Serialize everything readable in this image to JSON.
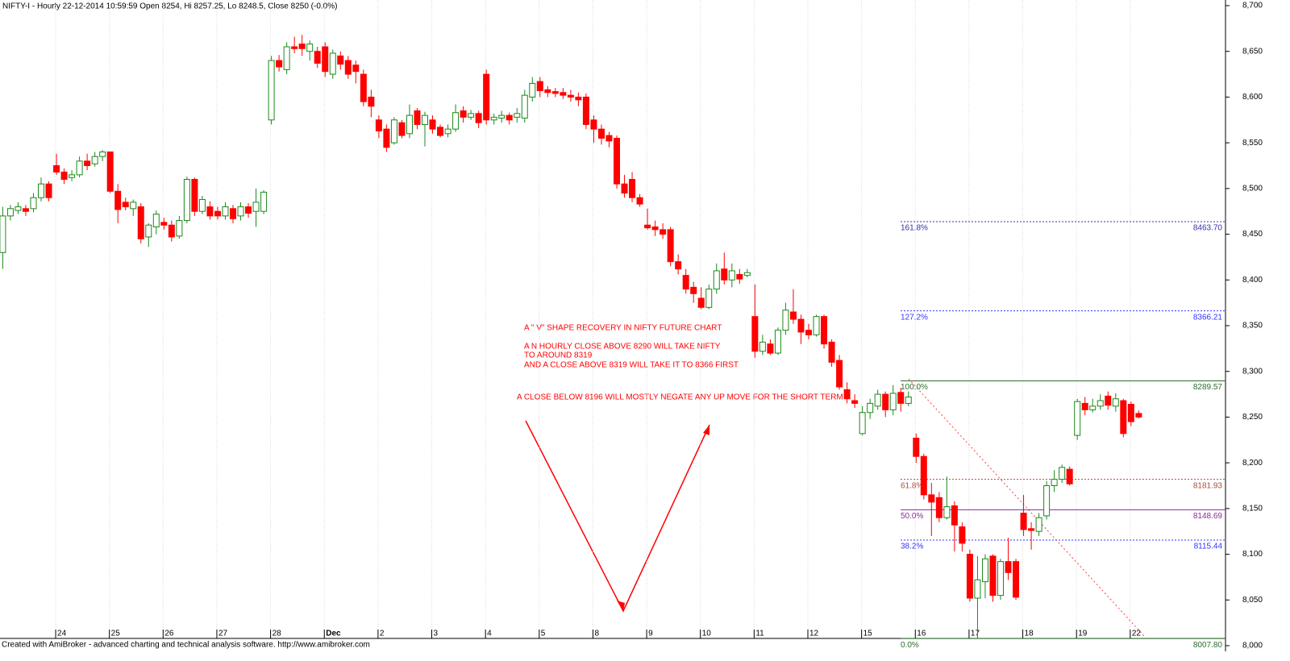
{
  "chart_data": {
    "type": "candlestick",
    "title": "NIFTY-I - Hourly 22-12-2014 10:59:59 Open 8254, Hi 8257.25, Lo 8248.5, Close 8250 (-0.0%)",
    "footer": "Created with AmiBroker - advanced charting and technical analysis software. http://www.amibroker.com",
    "annotations": [
      "A \" V\" SHAPE RECOVERY IN NIFTY FUTURE CHART",
      "A N HOURLY CLOSE ABOVE 8290 WILL TAKE NIFTY",
      "TO AROUND 8319",
      "AND A CLOSE ABOVE 8319 WILL TAKE IT TO 8366 FIRST",
      "A CLOSE BELOW 8196 WILL MOSTLY NEGATE ANY UP MOVE FOR THE SHORT TERM"
    ],
    "up_color": "#1a8a1a",
    "down_color": "#ff0000",
    "grid": true,
    "categories": [
      null,
      null,
      null,
      null,
      null,
      null,
      null,
      "24",
      null,
      null,
      null,
      null,
      null,
      null,
      "25",
      null,
      null,
      null,
      null,
      null,
      null,
      "26",
      null,
      null,
      null,
      null,
      null,
      null,
      "27",
      null,
      null,
      null,
      null,
      null,
      null,
      "28",
      null,
      null,
      null,
      null,
      null,
      null,
      "Dec",
      null,
      null,
      null,
      null,
      null,
      null,
      "2",
      null,
      null,
      null,
      null,
      null,
      null,
      "3",
      null,
      null,
      null,
      null,
      null,
      null,
      "4",
      null,
      null,
      null,
      null,
      null,
      null,
      "5",
      null,
      null,
      null,
      null,
      null,
      null,
      "8",
      null,
      null,
      null,
      null,
      null,
      null,
      "9",
      null,
      null,
      null,
      null,
      null,
      null,
      "10",
      null,
      null,
      null,
      null,
      null,
      null,
      "11",
      null,
      null,
      null,
      null,
      null,
      null,
      "12",
      null,
      null,
      null,
      null,
      null,
      null,
      "15",
      null,
      null,
      null,
      null,
      null,
      null,
      "16",
      null,
      null,
      null,
      null,
      null,
      null,
      "17",
      null,
      null,
      null,
      null,
      null,
      null,
      "18",
      null,
      null,
      null,
      null,
      null,
      null,
      "19",
      null,
      null,
      null,
      null,
      null,
      null,
      "22",
      null
    ],
    "open": [
      8430,
      8470,
      8476,
      8478,
      8478,
      8490,
      8505,
      8525,
      8518,
      8512,
      8515,
      8530,
      8527,
      8535,
      8540,
      8497,
      8485,
      8478,
      8480,
      8447,
      8458,
      8463,
      8460,
      8448,
      8465,
      8510,
      8475,
      8480,
      8475,
      8470,
      8478,
      8470,
      8480,
      8475,
      8475,
      8575,
      8640,
      8630,
      8655,
      8658,
      8650,
      8650,
      8655,
      8625,
      8645,
      8640,
      8635,
      8625,
      8600,
      8575,
      8565,
      8550,
      8572,
      8560,
      8585,
      8570,
      8575,
      8567,
      8560,
      8565,
      8585,
      8578,
      8582,
      8625,
      8575,
      8577,
      8580,
      8578,
      8577,
      8600,
      8617,
      8608,
      8606,
      8605,
      8602,
      8600,
      8600,
      8575,
      8565,
      8558,
      8555,
      8505,
      8510,
      8490,
      8460,
      8458,
      8455,
      8455,
      8420,
      8405,
      8392,
      8380,
      8370,
      8390,
      8412,
      8400,
      8406,
      8405,
      8360,
      8322,
      8330,
      8320,
      8345,
      8365,
      8357,
      8345,
      8340,
      8360,
      8332,
      8312,
      8280,
      8268,
      8232,
      8255,
      8262,
      8275,
      8258,
      8277,
      8265,
      8227,
      8207,
      8165,
      8162,
      8140,
      8153,
      8130,
      8100,
      8052,
      8070,
      8098,
      8055,
      8092,
      8092,
      8145,
      8128,
      8125,
      8142,
      8175,
      8182,
      8193,
      8230,
      8265,
      8258,
      8262,
      8273,
      8262,
      8268,
      8264,
      8254
    ],
    "high": [
      8480,
      8482,
      8485,
      8482,
      8495,
      8512,
      8508,
      8538,
      8522,
      8520,
      8535,
      8538,
      8540,
      8542,
      8540,
      8505,
      8490,
      8488,
      8484,
      8462,
      8476,
      8468,
      8465,
      8470,
      8513,
      8512,
      8492,
      8486,
      8480,
      8485,
      8482,
      8485,
      8484,
      8500,
      8498,
      8645,
      8646,
      8660,
      8666,
      8668,
      8662,
      8655,
      8660,
      8652,
      8650,
      8645,
      8640,
      8630,
      8608,
      8580,
      8570,
      8578,
      8575,
      8592,
      8588,
      8584,
      8580,
      8570,
      8570,
      8592,
      8590,
      8586,
      8585,
      8630,
      8582,
      8585,
      8583,
      8588,
      8608,
      8622,
      8622,
      8612,
      8610,
      8610,
      8608,
      8605,
      8604,
      8580,
      8570,
      8562,
      8558,
      8515,
      8518,
      8494,
      8478,
      8465,
      8462,
      8458,
      8428,
      8412,
      8398,
      8392,
      8395,
      8418,
      8430,
      8418,
      8412,
      8412,
      8395,
      8340,
      8335,
      8348,
      8375,
      8390,
      8362,
      8352,
      8362,
      8362,
      8335,
      8318,
      8288,
      8275,
      8262,
      8270,
      8280,
      8278,
      8285,
      8282,
      8278,
      8232,
      8210,
      8178,
      8168,
      8185,
      8158,
      8135,
      8105,
      8098,
      8100,
      8100,
      8095,
      8118,
      8095,
      8165,
      8135,
      8145,
      8180,
      8192,
      8198,
      8196,
      8270,
      8272,
      8270,
      8275,
      8278,
      8276,
      8270,
      8267,
      8257.25
    ],
    "low": [
      8412,
      8465,
      8472,
      8470,
      8474,
      8486,
      8486,
      8515,
      8505,
      8508,
      8512,
      8520,
      8524,
      8530,
      8495,
      8462,
      8476,
      8470,
      8440,
      8436,
      8450,
      8455,
      8442,
      8445,
      8462,
      8470,
      8472,
      8466,
      8466,
      8466,
      8462,
      8465,
      8468,
      8458,
      8472,
      8570,
      8628,
      8625,
      8648,
      8645,
      8640,
      8632,
      8622,
      8620,
      8630,
      8620,
      8615,
      8590,
      8578,
      8555,
      8540,
      8548,
      8555,
      8555,
      8565,
      8546,
      8560,
      8556,
      8556,
      8562,
      8572,
      8575,
      8566,
      8570,
      8570,
      8572,
      8570,
      8572,
      8572,
      8595,
      8600,
      8600,
      8600,
      8598,
      8595,
      8590,
      8565,
      8550,
      8548,
      8545,
      8500,
      8490,
      8485,
      8480,
      8455,
      8448,
      8445,
      8415,
      8406,
      8385,
      8375,
      8368,
      8368,
      8385,
      8395,
      8392,
      8396,
      8403,
      8315,
      8318,
      8318,
      8318,
      8340,
      8352,
      8330,
      8335,
      8338,
      8325,
      8305,
      8280,
      8265,
      8260,
      8230,
      8248,
      8258,
      8250,
      8252,
      8256,
      8262,
      8200,
      8160,
      8120,
      8135,
      8138,
      8103,
      8103,
      8048,
      8008,
      8052,
      8048,
      8050,
      8072,
      8050,
      8120,
      8105,
      8120,
      8138,
      8168,
      8178,
      8175,
      8225,
      8252,
      8255,
      8258,
      8258,
      8256,
      8228,
      8240,
      8248.5
    ],
    "close": [
      8470,
      8478,
      8480,
      8475,
      8490,
      8505,
      8490,
      8518,
      8510,
      8515,
      8530,
      8525,
      8535,
      8540,
      8497,
      8477,
      8480,
      8485,
      8445,
      8460,
      8472,
      8460,
      8447,
      8465,
      8510,
      8475,
      8488,
      8470,
      8470,
      8480,
      8467,
      8480,
      8473,
      8485,
      8496,
      8640,
      8633,
      8655,
      8653,
      8653,
      8658,
      8637,
      8628,
      8648,
      8636,
      8625,
      8628,
      8595,
      8590,
      8563,
      8545,
      8575,
      8558,
      8580,
      8570,
      8580,
      8565,
      8558,
      8565,
      8583,
      8578,
      8582,
      8572,
      8575,
      8578,
      8580,
      8575,
      8582,
      8602,
      8615,
      8607,
      8605,
      8604,
      8602,
      8600,
      8597,
      8570,
      8565,
      8555,
      8552,
      8505,
      8495,
      8490,
      8483,
      8457,
      8455,
      8450,
      8420,
      8412,
      8390,
      8385,
      8370,
      8390,
      8410,
      8400,
      8410,
      8401,
      8408,
      8322,
      8332,
      8320,
      8345,
      8367,
      8357,
      8343,
      8340,
      8360,
      8330,
      8310,
      8283,
      8270,
      8265,
      8255,
      8265,
      8275,
      8258,
      8276,
      8265,
      8272,
      8207,
      8165,
      8157,
      8140,
      8152,
      8132,
      8112,
      8052,
      8072,
      8095,
      8055,
      8092,
      8080,
      8053,
      8127,
      8126,
      8140,
      8175,
      8182,
      8195,
      8177,
      8267,
      8258,
      8262,
      8268,
      8263,
      8270,
      8232,
      8245,
      8250
    ],
    "ylim": [
      8000,
      8700
    ],
    "yticks": [
      {
        "value": 8000,
        "label": "8,000"
      },
      {
        "value": 8050,
        "label": "8,050"
      },
      {
        "value": 8100,
        "label": "8,100"
      },
      {
        "value": 8150,
        "label": "8,150"
      },
      {
        "value": 8200,
        "label": "8,200"
      },
      {
        "value": 8250,
        "label": "8,250"
      },
      {
        "value": 8300,
        "label": "8,300"
      },
      {
        "value": 8350,
        "label": "8,350"
      },
      {
        "value": 8400,
        "label": "8,400"
      },
      {
        "value": 8450,
        "label": "8,450"
      },
      {
        "value": 8500,
        "label": "8,500"
      },
      {
        "value": 8550,
        "label": "8,550"
      },
      {
        "value": 8600,
        "label": "8,600"
      },
      {
        "value": 8650,
        "label": "8,650"
      },
      {
        "value": 8700,
        "label": "8,700"
      }
    ],
    "fib_levels": [
      {
        "ratio": "161.8%",
        "value": 8463.7,
        "value_label": "8463.70",
        "color": "#3333aa",
        "dashed": true
      },
      {
        "ratio": "127.2%",
        "value": 8366.21,
        "value_label": "8366.21",
        "color": "#3333ff",
        "dashed": true
      },
      {
        "ratio": "100.0%",
        "value": 8289.57,
        "value_label": "8289.57",
        "color": "#2e6b2e",
        "dashed": false
      },
      {
        "ratio": "61.8%",
        "value": 8181.93,
        "value_label": "8181.93",
        "color": "#b04a3a",
        "dashed": true
      },
      {
        "ratio": "50.0%",
        "value": 8148.69,
        "value_label": "8148.69",
        "color": "#8a2a9a",
        "dashed": false
      },
      {
        "ratio": "38.2%",
        "value": 8115.44,
        "value_label": "8115.44",
        "color": "#3333ff",
        "dashed": true
      },
      {
        "ratio": "0.0%",
        "value": 8007.8,
        "value_label": "8007.80",
        "color": "#2e6b2e",
        "dashed": false
      }
    ]
  }
}
